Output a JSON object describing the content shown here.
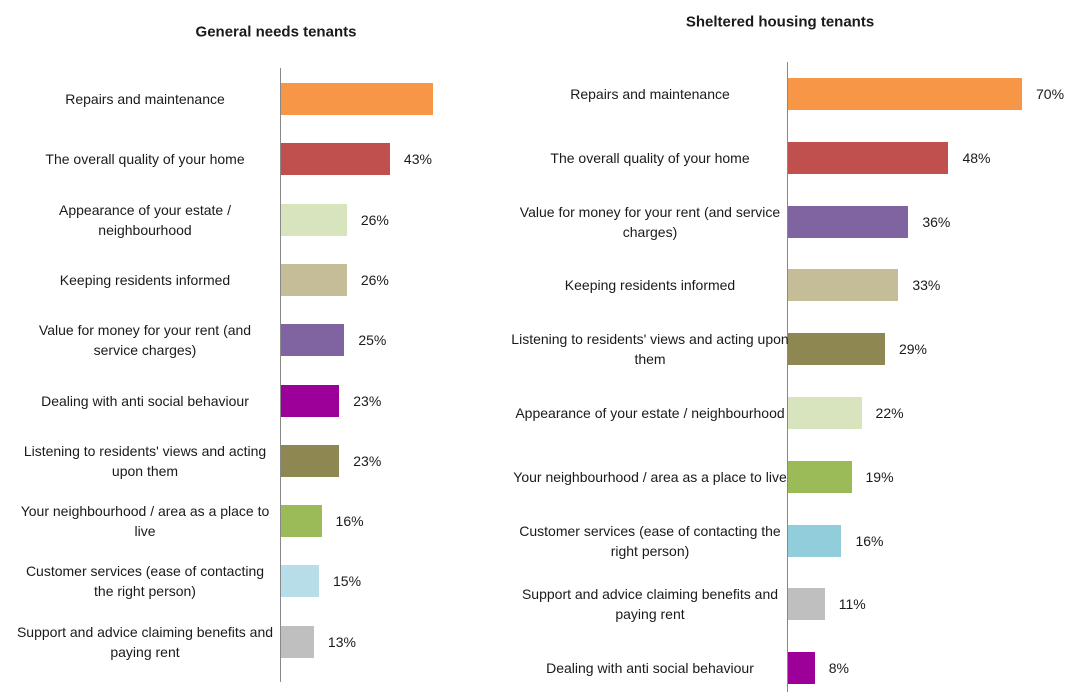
{
  "chart_data": [
    {
      "type": "hbar",
      "title": "General needs tenants",
      "categories": [
        "Repairs and maintenance",
        "The overall quality of your home",
        "Appearance of your estate / neighbourhood",
        "Keeping residents informed",
        "Value for money for your rent (and service charges)",
        "Dealing with anti social behaviour",
        "Listening to residents' views and acting upon them",
        "Your neighbourhood / area as a place to live",
        "Customer services (ease of contacting the right person)",
        "Support and advice claiming benefits and paying rent"
      ],
      "values": [
        60,
        43,
        26,
        26,
        25,
        23,
        23,
        16,
        15,
        13
      ],
      "value_labels": [
        null,
        "43%",
        "26%",
        "26%",
        "25%",
        "23%",
        "23%",
        "16%",
        "15%",
        "13%"
      ],
      "colors": [
        "#f79646",
        "#c0504d",
        "#d7e4bd",
        "#c4bd97",
        "#8064a2",
        "#9c0099",
        "#8e8752",
        "#9bbb59",
        "#b7dde8",
        "#bfbfbf"
      ],
      "xlim": [
        0,
        60
      ]
    },
    {
      "type": "hbar",
      "title": "Sheltered housing tenants",
      "categories": [
        "Repairs and maintenance",
        "The overall quality of your home",
        "Value for money for your rent (and service charges)",
        "Keeping residents informed",
        "Listening to residents' views and acting upon them",
        "Appearance of your estate / neighbourhood",
        "Your neighbourhood / area as a place to live",
        "Customer services (ease of contacting the right person)",
        "Support and advice claiming benefits and paying rent",
        "Dealing with anti social behaviour"
      ],
      "values": [
        70,
        48,
        36,
        33,
        29,
        22,
        19,
        16,
        11,
        8
      ],
      "value_labels": [
        "70%",
        "48%",
        "36%",
        "33%",
        "29%",
        "22%",
        "19%",
        "16%",
        "11%",
        "8%"
      ],
      "colors": [
        "#f79646",
        "#c0504d",
        "#8064a2",
        "#c4bd97",
        "#8e8752",
        "#d7e4bd",
        "#9bbb59",
        "#92cddc",
        "#bfbfbf",
        "#9c0099"
      ],
      "xlim": [
        0,
        70
      ]
    }
  ]
}
